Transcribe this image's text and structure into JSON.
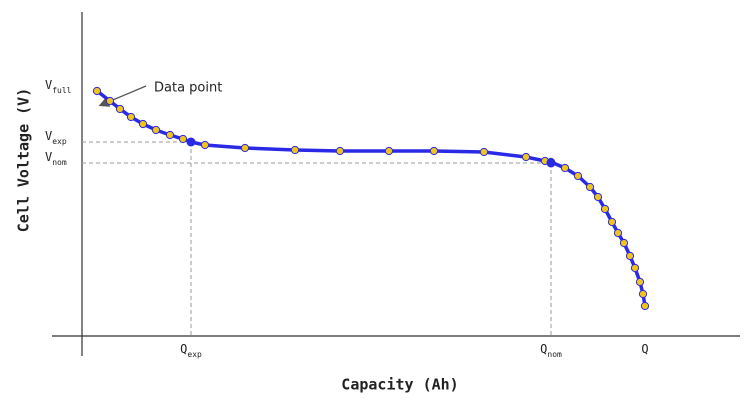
{
  "chart_data": {
    "type": "line",
    "x_label": "Capacity (Ah)",
    "y_label": "Cell Voltage (V)",
    "annotation": "Data point",
    "line_color": "#2a2ae6",
    "point_color": "#f0c419",
    "xlim": [
      0,
      6.58
    ],
    "ylim": [
      0,
      3.24
    ],
    "xticks": [
      {
        "value": 1.09,
        "label": "Q",
        "sub": "exp"
      },
      {
        "value": 4.69,
        "label": "Q",
        "sub": "nom"
      },
      {
        "value": 5.63,
        "label": "Q"
      }
    ],
    "yticks": [
      {
        "value": 2.45,
        "label": "V",
        "sub": "full"
      },
      {
        "value": 1.94,
        "label": "V",
        "sub": "exp"
      },
      {
        "value": 1.73,
        "label": "V",
        "sub": "nom"
      }
    ],
    "x": [
      0.15,
      0.28,
      0.38,
      0.49,
      0.61,
      0.74,
      0.88,
      1.01,
      1.09,
      1.23,
      1.63,
      2.13,
      2.58,
      3.07,
      3.52,
      4.02,
      4.44,
      4.63,
      4.69,
      4.83,
      4.96,
      5.08,
      5.16,
      5.23,
      5.3,
      5.36,
      5.42,
      5.48,
      5.53,
      5.58,
      5.61,
      5.63
    ],
    "values": [
      2.45,
      2.35,
      2.27,
      2.19,
      2.12,
      2.06,
      2.01,
      1.97,
      1.94,
      1.91,
      1.88,
      1.86,
      1.85,
      1.85,
      1.85,
      1.84,
      1.79,
      1.75,
      1.74,
      1.68,
      1.6,
      1.49,
      1.39,
      1.27,
      1.14,
      1.03,
      0.93,
      0.8,
      0.68,
      0.54,
      0.42,
      0.3
    ]
  }
}
